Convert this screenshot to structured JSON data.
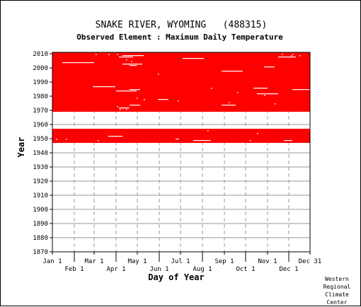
{
  "chart_data": {
    "type": "heatmap",
    "title": "SNAKE RIVER, WYOMING   (488315)",
    "subtitle": "Observed Element : Maximum Daily Temperature",
    "xlabel": "Day of Year",
    "ylabel": "Year",
    "x_ticks_top_row": [
      "Jan 1",
      "Mar 1",
      "May 1",
      "Jul 1",
      "Sep 1",
      "Nov 1",
      "Dec 31"
    ],
    "x_ticks_bottom_row": [
      "Feb 1",
      "Apr 1",
      "Jun 1",
      "Aug 1",
      "Oct 1",
      "Dec 1"
    ],
    "x_tick_days": [
      1,
      32,
      60,
      91,
      121,
      152,
      182,
      213,
      244,
      274,
      305,
      335,
      365
    ],
    "x_tick_labels_in_order": [
      "Jan 1",
      "Feb 1",
      "Mar 1",
      "Apr 1",
      "May 1",
      "Jun 1",
      "Jul 1",
      "Aug 1",
      "Sep 1",
      "Oct 1",
      "Nov 1",
      "Dec 1",
      "Dec 31"
    ],
    "y_ticks": [
      2010,
      2000,
      1990,
      1980,
      1970,
      1960,
      1950,
      1940,
      1930,
      1920,
      1910,
      1900,
      1890,
      1880,
      1870
    ],
    "xlim": [
      1,
      365
    ],
    "ylim": [
      1870,
      2011
    ],
    "grid": true,
    "data_color": "#ff0000",
    "periods_with_data": [
      {
        "start_year": 1947,
        "end_year": 1956
      },
      {
        "start_year": 1969,
        "end_year": 2010
      }
    ],
    "missing_segments": [
      {
        "year": 2008,
        "start_day": 100,
        "end_day": 130
      },
      {
        "year": 2007,
        "start_day": 95,
        "end_day": 115
      },
      {
        "year": 2007,
        "start_day": 320,
        "end_day": 345
      },
      {
        "year": 2006,
        "start_day": 185,
        "end_day": 215
      },
      {
        "year": 2003,
        "start_day": 15,
        "end_day": 60
      },
      {
        "year": 2002,
        "start_day": 100,
        "end_day": 128
      },
      {
        "year": 2001,
        "start_day": 110,
        "end_day": 120
      },
      {
        "year": 2000,
        "start_day": 300,
        "end_day": 315
      },
      {
        "year": 1997,
        "start_day": 240,
        "end_day": 270
      },
      {
        "year": 1986,
        "start_day": 58,
        "end_day": 90
      },
      {
        "year": 1985,
        "start_day": 285,
        "end_day": 305
      },
      {
        "year": 1984,
        "start_day": 110,
        "end_day": 125
      },
      {
        "year": 1984,
        "start_day": 340,
        "end_day": 365
      },
      {
        "year": 1983,
        "start_day": 91,
        "end_day": 120
      },
      {
        "year": 1981,
        "start_day": 290,
        "end_day": 320
      },
      {
        "year": 1977,
        "start_day": 150,
        "end_day": 165
      },
      {
        "year": 1973,
        "start_day": 110,
        "end_day": 125
      },
      {
        "year": 1973,
        "start_day": 240,
        "end_day": 260
      },
      {
        "year": 1971,
        "start_day": 95,
        "end_day": 110
      },
      {
        "year": 1951,
        "start_day": 80,
        "end_day": 100
      },
      {
        "year": 1949,
        "start_day": 175,
        "end_day": 180
      },
      {
        "year": 1948,
        "start_day": 200,
        "end_day": 225
      },
      {
        "year": 1948,
        "start_day": 328,
        "end_day": 340
      }
    ],
    "missing_points": [
      {
        "year": 2009,
        "day": 62
      },
      {
        "year": 2009,
        "day": 80
      },
      {
        "year": 2009,
        "day": 92
      },
      {
        "year": 2009,
        "day": 325
      },
      {
        "year": 2009,
        "day": 340
      },
      {
        "year": 2008,
        "day": 338
      },
      {
        "year": 2008,
        "day": 350
      },
      {
        "year": 2005,
        "day": 105
      },
      {
        "year": 2004,
        "day": 112
      },
      {
        "year": 1995,
        "day": 150
      },
      {
        "year": 1985,
        "day": 225
      },
      {
        "year": 1982,
        "day": 262
      },
      {
        "year": 1980,
        "day": 300
      },
      {
        "year": 1978,
        "day": 120
      },
      {
        "year": 1977,
        "day": 130
      },
      {
        "year": 1976,
        "day": 178
      },
      {
        "year": 1975,
        "day": 250
      },
      {
        "year": 1974,
        "day": 315
      },
      {
        "year": 1972,
        "day": 92
      },
      {
        "year": 1971,
        "day": 100
      },
      {
        "year": 1970,
        "day": 96
      },
      {
        "year": 1970,
        "day": 105
      },
      {
        "year": 1955,
        "day": 220
      },
      {
        "year": 1953,
        "day": 290
      },
      {
        "year": 1949,
        "day": 6
      },
      {
        "year": 1949,
        "day": 20
      },
      {
        "year": 1948,
        "day": 65
      },
      {
        "year": 1948,
        "day": 280
      }
    ]
  },
  "credit_lines": [
    "Western",
    "Regional",
    "Climate",
    "Center"
  ]
}
